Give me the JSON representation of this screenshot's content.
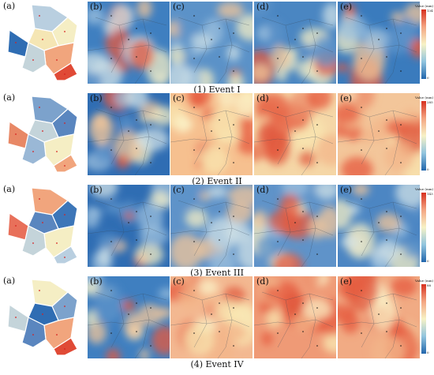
{
  "colors": {
    "blue_dark": "#2f6db3",
    "blue_mid": "#6f9ccc",
    "blue_light": "#b9cfe0",
    "cream": "#f5f0c4",
    "orange": "#f1a57d",
    "red": "#e04a36"
  },
  "panel_labels": {
    "a": "(a)",
    "b": "(b)",
    "c": "(c)",
    "d": "(d)",
    "e": "(e)"
  },
  "colorbar_title": "Value (mm)",
  "events": [
    {
      "caption": "(1) Event I",
      "colorbar_max": "134",
      "colorbar_min": "0",
      "region_colors": [
        "#b9cfe0",
        "#f5eec4",
        "#f5e6b4",
        "#f1a57d",
        "#e04a36",
        "#2f6db3",
        "#c4d4da"
      ],
      "maps": [
        "#3f7fc0",
        "#5b92c8",
        "#4a86c2",
        "#3a7bbd"
      ],
      "hot": [
        0.45,
        0.25,
        0.2,
        0.45
      ]
    },
    {
      "caption": "(2) Event II",
      "colorbar_max": "285",
      "colorbar_min": "0",
      "region_colors": [
        "#7ca2cc",
        "#5a86bf",
        "#c4d4da",
        "#f5eec4",
        "#f1a57d",
        "#e88866",
        "#9ab8d6"
      ],
      "maps": [
        "#2f6db3",
        "#f6c08f",
        "#f5d7a7",
        "#f3c69a"
      ],
      "hot": [
        0.1,
        0.75,
        0.55,
        0.65
      ]
    },
    {
      "caption": "(3) Event III",
      "colorbar_max": "143",
      "colorbar_min": "0",
      "region_colors": [
        "#f1a57d",
        "#3d76b8",
        "#5a86bf",
        "#f5eec4",
        "#b9cfe0",
        "#e8705a",
        "#c4d4da"
      ],
      "maps": [
        "#2f6db3",
        "#5f93c9",
        "#5f93c9",
        "#4c86c3"
      ],
      "hot": [
        0.05,
        0.35,
        0.35,
        0.25
      ]
    },
    {
      "caption": "(4) Event IV",
      "colorbar_max": "88",
      "colorbar_min": "0",
      "region_colors": [
        "#f5eec4",
        "#7ca2cc",
        "#2f6db3",
        "#f1a57d",
        "#e04a36",
        "#c4d4da",
        "#5a86bf"
      ],
      "maps": [
        "#3f7fc0",
        "#f3b891",
        "#ef9a76",
        "#f1ab84"
      ],
      "hot": [
        0.15,
        0.7,
        0.85,
        0.75
      ]
    }
  ]
}
